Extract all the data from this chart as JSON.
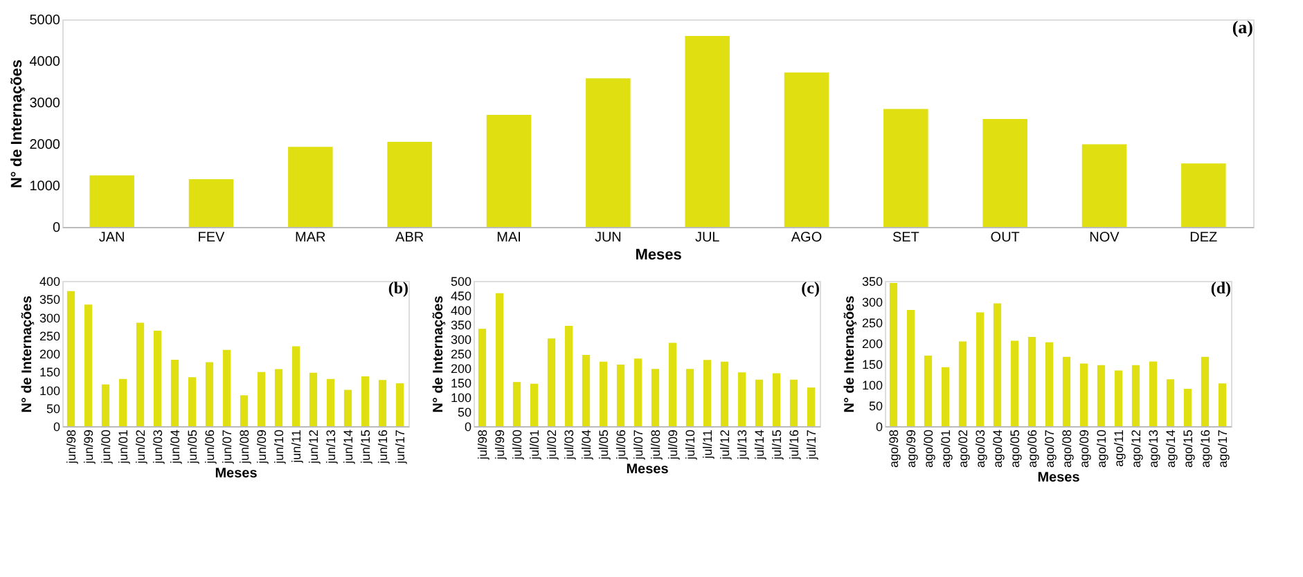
{
  "chart_data": [
    {
      "type": "bar",
      "annotations": [
        "(a)"
      ],
      "xlabel": "Meses",
      "ylabel": "N° de Internações",
      "color": "#dfdf12",
      "categories": [
        "JAN",
        "FEV",
        "MAR",
        "ABR",
        "MAI",
        "JUN",
        "JUL",
        "AGO",
        "SET",
        "OUT",
        "NOV",
        "DEZ"
      ],
      "values": [
        1240,
        1150,
        1930,
        2050,
        2700,
        3580,
        4600,
        3720,
        2840,
        2600,
        1990,
        1530
      ],
      "ylim": [
        0,
        5000
      ],
      "yticks": [
        0,
        1000,
        2000,
        3000,
        4000,
        5000
      ]
    },
    {
      "type": "bar",
      "annotations": [
        "(b)"
      ],
      "xlabel": "Meses",
      "ylabel": "N° de Internações",
      "color": "#dfdf12",
      "categories": [
        "jun/98",
        "jun/99",
        "jun/00",
        "jun/01",
        "jun/02",
        "jun/03",
        "jun/04",
        "jun/05",
        "jun/06",
        "jun/07",
        "jun/08",
        "jun/09",
        "jun/10",
        "jun/11",
        "jun/12",
        "jun/13",
        "jun/14",
        "jun/15",
        "jun/16",
        "jun/17"
      ],
      "values": [
        372,
        335,
        115,
        130,
        285,
        263,
        183,
        135,
        176,
        210,
        85,
        149,
        157,
        220,
        147,
        130,
        100,
        137,
        127,
        118
      ],
      "ylim": [
        0,
        400
      ],
      "yticks": [
        0,
        50,
        100,
        150,
        200,
        250,
        300,
        350,
        400
      ]
    },
    {
      "type": "bar",
      "annotations": [
        "(c)"
      ],
      "xlabel": "Meses",
      "ylabel": "N° de Internações",
      "color": "#dfdf12",
      "categories": [
        "jul/98",
        "jul/99",
        "jul/00",
        "jul/01",
        "jul/02",
        "jul/03",
        "jul/04",
        "jul/05",
        "jul/06",
        "jul/07",
        "jul/08",
        "jul/09",
        "jul/10",
        "jul/11",
        "jul/12",
        "jul/13",
        "jul/14",
        "jul/15",
        "jul/16",
        "jul/17"
      ],
      "values": [
        335,
        458,
        152,
        146,
        302,
        345,
        245,
        222,
        212,
        233,
        197,
        287,
        197,
        228,
        222,
        185,
        160,
        182,
        160,
        133
      ],
      "ylim": [
        0,
        500
      ],
      "yticks": [
        0,
        50,
        100,
        150,
        200,
        250,
        300,
        350,
        400,
        450,
        500
      ]
    },
    {
      "type": "bar",
      "annotations": [
        "(d)"
      ],
      "xlabel": "Meses",
      "ylabel": "N° de Internações",
      "color": "#dfdf12",
      "categories": [
        "ago/98",
        "ago/99",
        "ago/00",
        "ago/01",
        "ago/02",
        "ago/03",
        "ago/04",
        "ago/05",
        "ago/06",
        "ago/07",
        "ago/08",
        "ago/09",
        "ago/10",
        "ago/11",
        "ago/12",
        "ago/13",
        "ago/14",
        "ago/15",
        "ago/16",
        "ago/17"
      ],
      "values": [
        345,
        280,
        170,
        142,
        204,
        274,
        296,
        206,
        215,
        202,
        167,
        151,
        147,
        134,
        147,
        156,
        113,
        90,
        167,
        103
      ],
      "ylim": [
        0,
        350
      ],
      "yticks": [
        0,
        50,
        100,
        150,
        200,
        250,
        300,
        350
      ]
    }
  ]
}
